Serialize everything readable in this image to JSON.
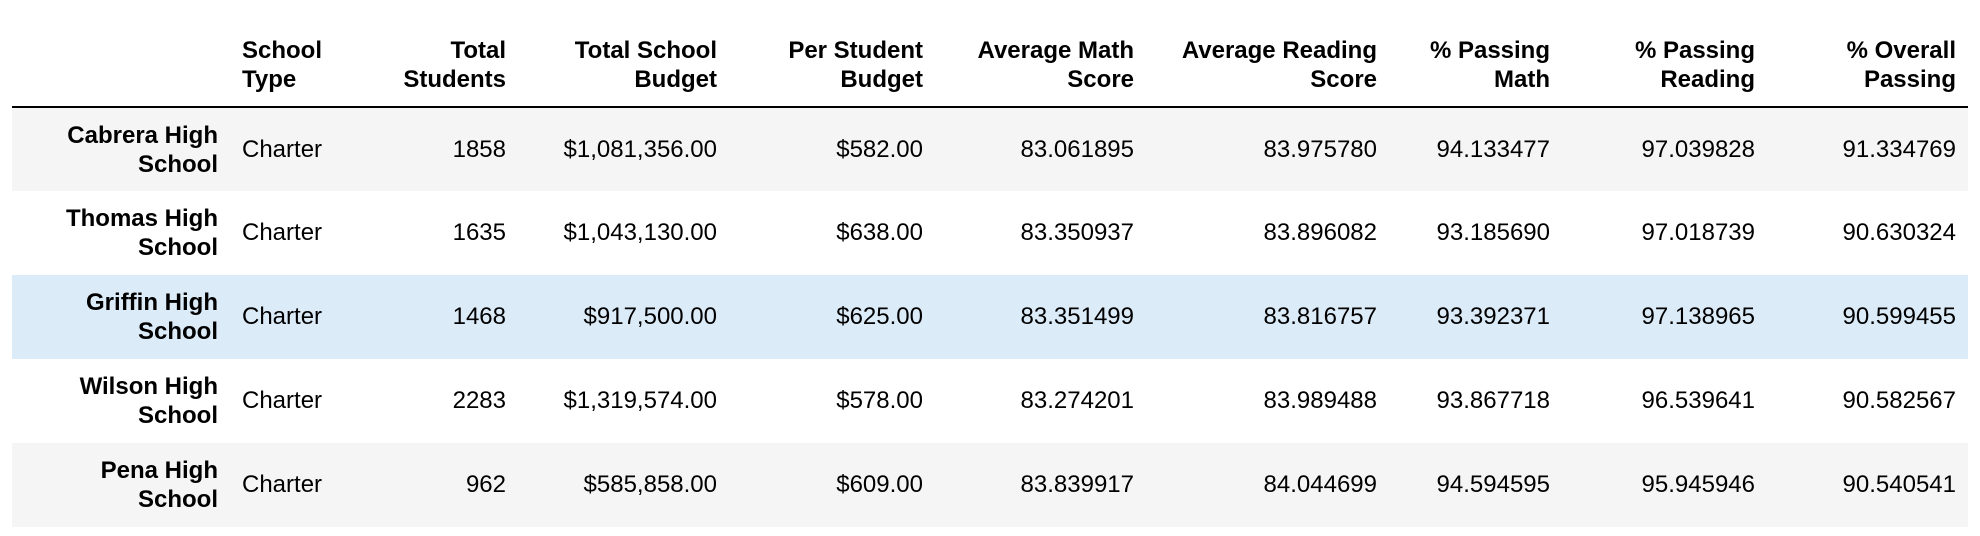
{
  "columns": {
    "school_type": "School Type",
    "total_students": "Total Students",
    "total_school_budget": "Total School Budget",
    "per_student_budget": "Per Student Budget",
    "average_math_score": "Average Math Score",
    "average_reading_score": "Average Reading Score",
    "pct_passing_math": "% Passing Math",
    "pct_passing_reading": "% Passing Reading",
    "pct_overall_passing": "% Overall Passing"
  },
  "rows": [
    {
      "school": "Cabrera High School",
      "school_type": "Charter",
      "total_students": "1858",
      "total_school_budget": "$1,081,356.00",
      "per_student_budget": "$582.00",
      "average_math_score": "83.061895",
      "average_reading_score": "83.975780",
      "pct_passing_math": "94.133477",
      "pct_passing_reading": "97.039828",
      "pct_overall_passing": "91.334769"
    },
    {
      "school": "Thomas High School",
      "school_type": "Charter",
      "total_students": "1635",
      "total_school_budget": "$1,043,130.00",
      "per_student_budget": "$638.00",
      "average_math_score": "83.350937",
      "average_reading_score": "83.896082",
      "pct_passing_math": "93.185690",
      "pct_passing_reading": "97.018739",
      "pct_overall_passing": "90.630324"
    },
    {
      "school": "Griffin High School",
      "school_type": "Charter",
      "total_students": "1468",
      "total_school_budget": "$917,500.00",
      "per_student_budget": "$625.00",
      "average_math_score": "83.351499",
      "average_reading_score": "83.816757",
      "pct_passing_math": "93.392371",
      "pct_passing_reading": "97.138965",
      "pct_overall_passing": "90.599455"
    },
    {
      "school": "Wilson High School",
      "school_type": "Charter",
      "total_students": "2283",
      "total_school_budget": "$1,319,574.00",
      "per_student_budget": "$578.00",
      "average_math_score": "83.274201",
      "average_reading_score": "83.989488",
      "pct_passing_math": "93.867718",
      "pct_passing_reading": "96.539641",
      "pct_overall_passing": "90.582567"
    },
    {
      "school": "Pena High School",
      "school_type": "Charter",
      "total_students": "962",
      "total_school_budget": "$585,858.00",
      "per_student_budget": "$609.00",
      "average_math_score": "83.839917",
      "average_reading_score": "84.044699",
      "pct_passing_math": "94.594595",
      "pct_passing_reading": "95.945946",
      "pct_overall_passing": "90.540541"
    }
  ],
  "highlighted_row_index": 2,
  "colors": {
    "row_stripe": "#f5f5f5",
    "row_hover": "#dcebf8",
    "header_rule": "#000000"
  }
}
